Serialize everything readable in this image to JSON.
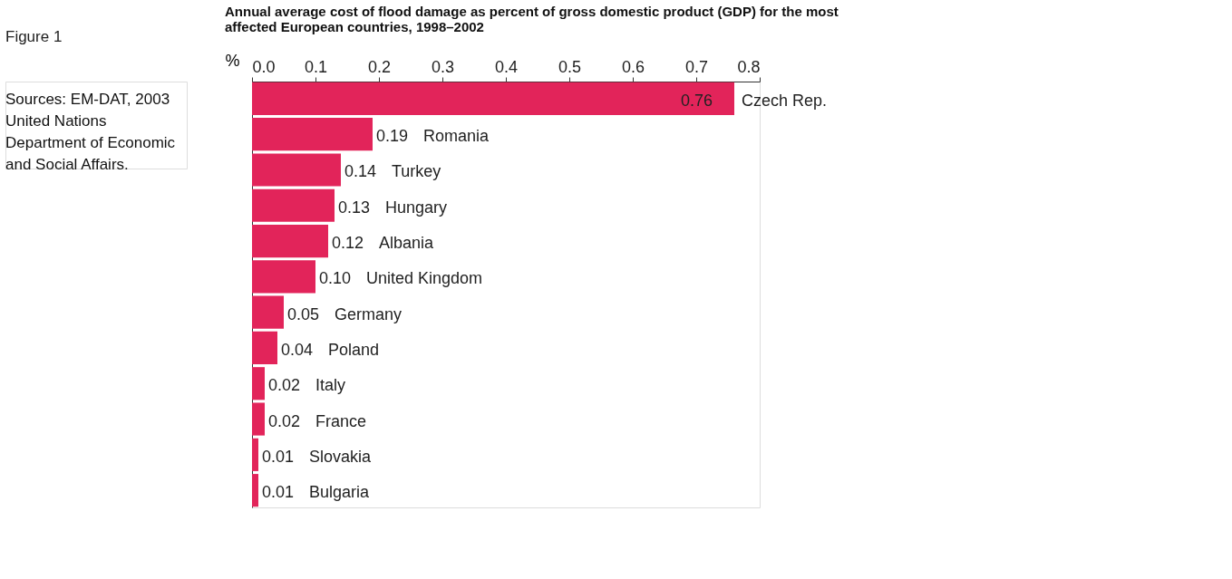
{
  "chart_data": {
    "type": "bar",
    "orientation": "horizontal",
    "title": "Annual average cost of flood damage as percent of gross domestic product (GDP) for the most affected European countries, 1998–2002",
    "xlabel": "%",
    "annotations": [
      "Figure 1",
      "Sources: EM-DAT, 2003 United Nations Department of Economic and Social Affairs."
    ],
    "categories": [
      "Czech Rep.",
      "Romania",
      "Turkey",
      "Hungary",
      "Albania",
      "United Kingdom",
      "Germany",
      "Poland",
      "Italy",
      "France",
      "Slovakia",
      "Bulgaria"
    ],
    "values": [
      0.76,
      0.19,
      0.14,
      0.13,
      0.12,
      0.1,
      0.05,
      0.04,
      0.02,
      0.02,
      0.01,
      0.01
    ],
    "value_labels": [
      "0.76",
      "0.19",
      "0.14",
      "0.13",
      "0.12",
      "0.10",
      "0.05",
      "0.04",
      "0.02",
      "0.02",
      "0.01",
      "0.01"
    ],
    "color": "#e2245a",
    "xlim": [
      0,
      0.8
    ],
    "xticks": [
      {
        "value": 0,
        "label": "0.0"
      },
      {
        "value": 0.1,
        "label": "0.1"
      },
      {
        "value": 0.2,
        "label": "0.2"
      },
      {
        "value": 0.3,
        "label": "0.3"
      },
      {
        "value": 0.4,
        "label": "0.4"
      },
      {
        "value": 0.5,
        "label": "0.5"
      },
      {
        "value": 0.6,
        "label": "0.6"
      },
      {
        "value": 0.7,
        "label": "0.7"
      },
      {
        "value": 0.8,
        "label": "0.8"
      }
    ],
    "tick_labels": "x",
    "grid": false
  }
}
